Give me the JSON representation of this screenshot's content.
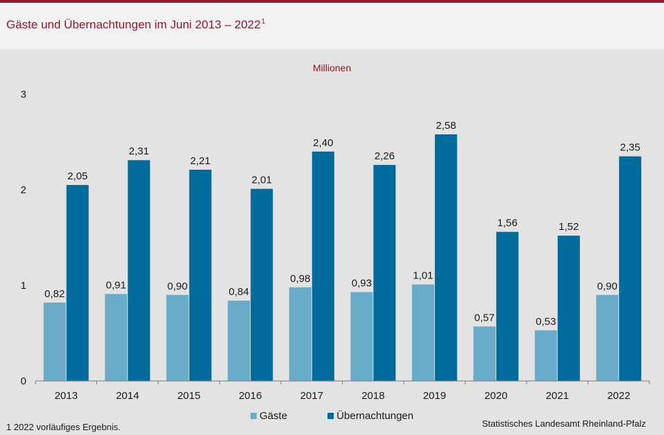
{
  "header": {
    "title": "Gäste und Übernachtungen im Juni 2013 – 2022",
    "title_footnote_mark": "1"
  },
  "chart_data": {
    "type": "bar",
    "unit_label": "Millionen",
    "categories": [
      "2013",
      "2014",
      "2015",
      "2016",
      "2017",
      "2018",
      "2019",
      "2020",
      "2021",
      "2022"
    ],
    "series": [
      {
        "name": "Gäste",
        "color": "#6aabca",
        "values": [
          0.82,
          0.91,
          0.9,
          0.84,
          0.98,
          0.93,
          1.01,
          0.57,
          0.53,
          0.9
        ],
        "labels": [
          "0,82",
          "0,91",
          "0,90",
          "0,84",
          "0,98",
          "0,93",
          "1,01",
          "0,57",
          "0,53",
          "0,90"
        ]
      },
      {
        "name": "Übernachtungen",
        "color": "#006b9a",
        "values": [
          2.05,
          2.31,
          2.21,
          2.01,
          2.4,
          2.26,
          2.58,
          1.56,
          1.52,
          2.35
        ],
        "labels": [
          "2,05",
          "2,31",
          "2,21",
          "2,01",
          "2,40",
          "2,26",
          "2,58",
          "1,56",
          "1,52",
          "2,35"
        ]
      }
    ],
    "ylim": [
      0,
      3
    ],
    "yticks": [
      0,
      1,
      2,
      3
    ],
    "ytick_labels": [
      "0",
      "1",
      "2",
      "3"
    ],
    "grid": false,
    "legend_position": "bottom-center"
  },
  "footer": {
    "footnote": "1 2022 vorläufiges Ergebnis.",
    "source": "Statistisches Landesamt  Rheinland-Pfalz"
  }
}
